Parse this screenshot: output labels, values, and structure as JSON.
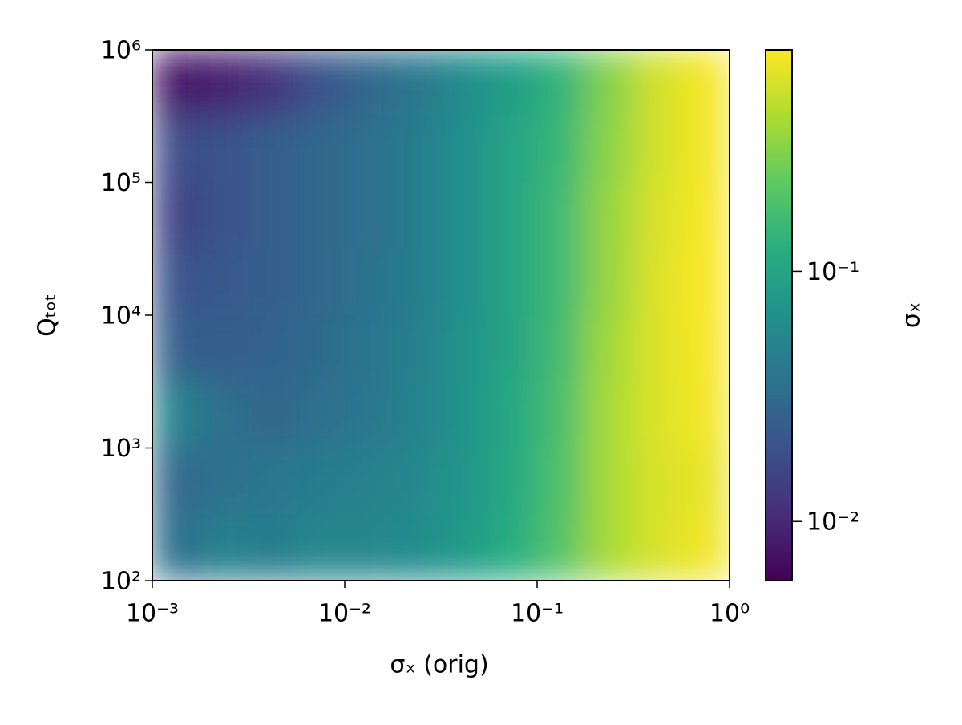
{
  "chart_data": {
    "type": "heatmap",
    "xlabel": "σₓ (orig)",
    "ylabel": "Qₜₒₜ",
    "colorbar_label": "σₓ",
    "xscale": "log",
    "yscale": "log",
    "colorscale": "log",
    "colormap": "viridis",
    "xlim": [
      0.001,
      1
    ],
    "ylim": [
      100,
      1000000
    ],
    "clim": [
      0.0058,
      0.77
    ],
    "xticks": [
      {
        "value": 0.001,
        "label": "10⁻³"
      },
      {
        "value": 0.01,
        "label": "10⁻²"
      },
      {
        "value": 0.1,
        "label": "10⁻¹"
      },
      {
        "value": 1,
        "label": "10⁰"
      }
    ],
    "yticks": [
      {
        "value": 100,
        "label": "10²"
      },
      {
        "value": 1000,
        "label": "10³"
      },
      {
        "value": 10000,
        "label": "10⁴"
      },
      {
        "value": 100000,
        "label": "10⁵"
      },
      {
        "value": 1000000,
        "label": "10⁶"
      }
    ],
    "cticks": [
      {
        "value": 0.01,
        "label": "10⁻²"
      },
      {
        "value": 0.1,
        "label": "10⁻¹"
      }
    ],
    "x": [
      0.001334,
      0.002371,
      0.004217,
      0.007499,
      0.01334,
      0.02371,
      0.04217,
      0.07499,
      0.1334,
      0.2371,
      0.4217,
      0.7499
    ],
    "y": [
      562341,
      177828,
      56234,
      17783,
      5623,
      1778,
      562,
      178
    ],
    "z": [
      [
        0.008,
        0.009,
        0.012,
        0.02,
        0.03,
        0.04,
        0.06,
        0.09,
        0.14,
        0.3,
        0.55,
        0.72
      ],
      [
        0.018,
        0.02,
        0.025,
        0.03,
        0.035,
        0.045,
        0.065,
        0.1,
        0.15,
        0.32,
        0.55,
        0.72
      ],
      [
        0.015,
        0.02,
        0.025,
        0.03,
        0.035,
        0.045,
        0.065,
        0.1,
        0.16,
        0.35,
        0.58,
        0.74
      ],
      [
        0.02,
        0.022,
        0.025,
        0.03,
        0.036,
        0.045,
        0.065,
        0.1,
        0.16,
        0.35,
        0.6,
        0.75
      ],
      [
        0.025,
        0.025,
        0.028,
        0.032,
        0.038,
        0.048,
        0.07,
        0.1,
        0.17,
        0.38,
        0.6,
        0.74
      ],
      [
        0.05,
        0.035,
        0.03,
        0.034,
        0.04,
        0.05,
        0.07,
        0.11,
        0.18,
        0.4,
        0.6,
        0.72
      ],
      [
        0.03,
        0.035,
        0.04,
        0.045,
        0.05,
        0.055,
        0.075,
        0.11,
        0.19,
        0.4,
        0.58,
        0.65
      ],
      [
        0.035,
        0.05,
        0.045,
        0.055,
        0.055,
        0.06,
        0.08,
        0.12,
        0.2,
        0.4,
        0.58,
        0.7
      ]
    ]
  }
}
